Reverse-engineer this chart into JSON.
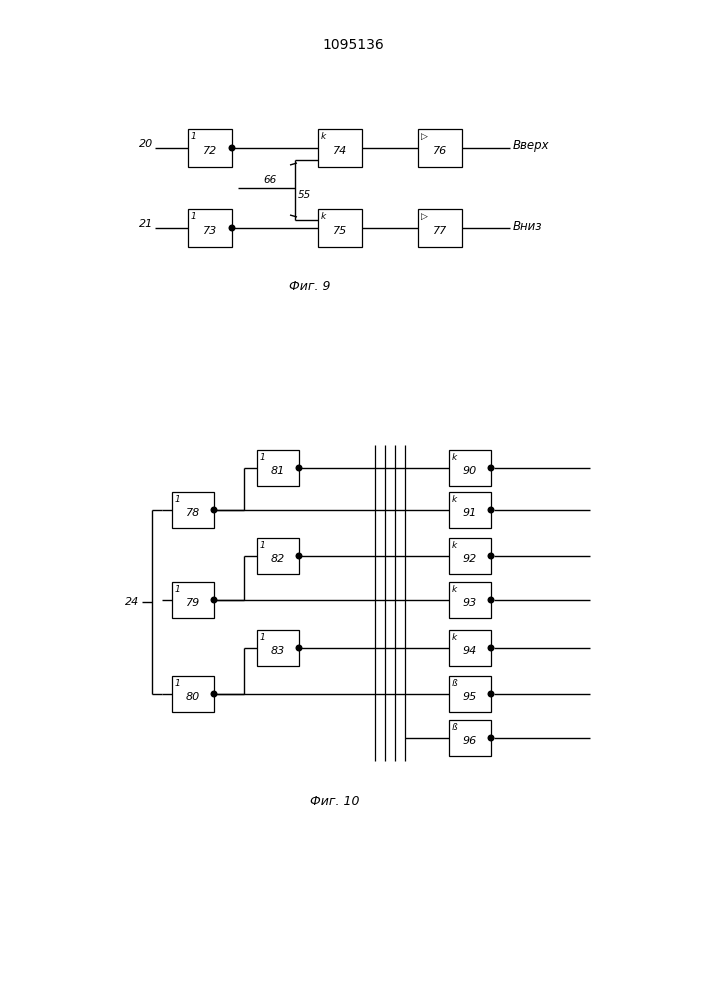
{
  "title": "1095136",
  "fig9_caption": "Фиг. 9",
  "fig10_caption": "Фиг. 10",
  "bg_color": "#ffffff",
  "line_color": "#000000",
  "box_color": "#ffffff",
  "box_edge": "#000000"
}
